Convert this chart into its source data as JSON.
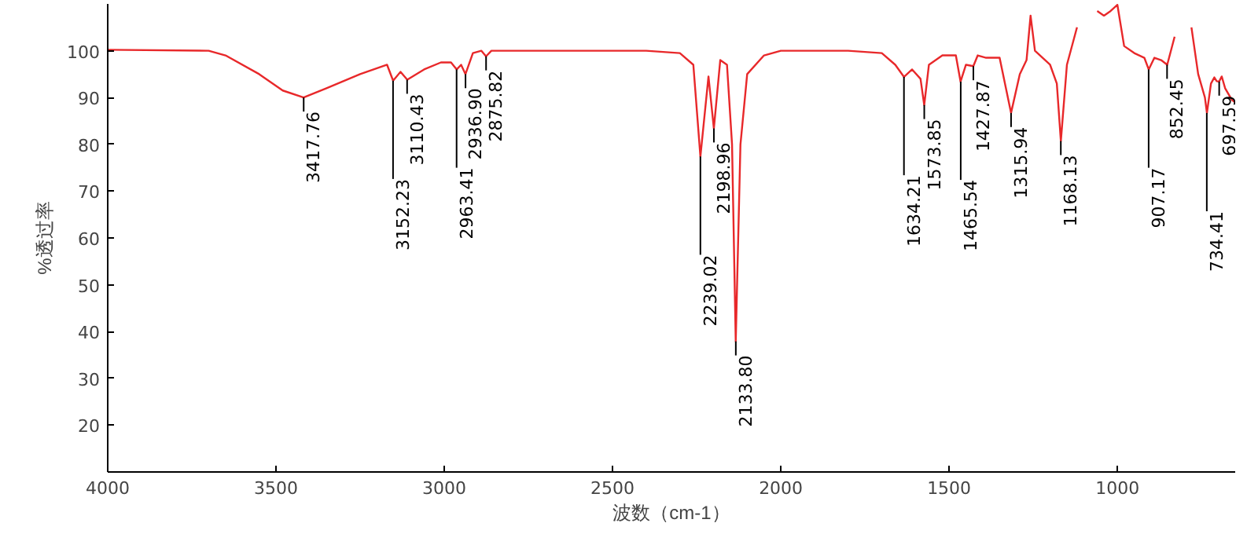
{
  "chart_data": {
    "type": "line",
    "xlabel": "波数（cm-1）",
    "ylabel": "%透过率",
    "xlim": [
      4000,
      650
    ],
    "ylim": [
      10,
      110
    ],
    "xticks": [
      4000,
      3500,
      3000,
      2500,
      2000,
      1500,
      1000
    ],
    "yticks": [
      20,
      30,
      40,
      50,
      60,
      70,
      80,
      90,
      100
    ],
    "grid": false,
    "line_style": "solid",
    "series": [
      {
        "color": "#e8282a",
        "x": [
          4000,
          3700,
          3650,
          3550,
          3480,
          3418,
          3350,
          3250,
          3170,
          3152,
          3130,
          3110,
          3060,
          3010,
          2980,
          2963,
          2950,
          2937,
          2915,
          2890,
          2876,
          2860,
          2600,
          2400,
          2300,
          2260,
          2239,
          2215,
          2199,
          2180,
          2160,
          2145,
          2134,
          2120,
          2100,
          2050,
          2000,
          1800,
          1700,
          1660,
          1634,
          1610,
          1585,
          1574,
          1560,
          1520,
          1480,
          1466,
          1450,
          1428,
          1415,
          1390,
          1350,
          1316,
          1290,
          1270,
          1258,
          1245,
          1200,
          1180,
          1168,
          1150,
          1120,
          1090,
          1060,
          1040,
          1020,
          1000,
          980,
          950,
          920,
          907,
          890,
          870,
          852,
          830,
          800,
          780,
          760,
          740,
          734,
          722,
          712,
          705,
          698,
          690,
          680,
          660,
          650
        ],
        "values": [
          100.2,
          100,
          99,
          95,
          91.5,
          90,
          92,
          95,
          97,
          93.6,
          95.5,
          93.8,
          96,
          97.5,
          97.5,
          96,
          97,
          95,
          99.5,
          100,
          98.8,
          100,
          100,
          100,
          99.5,
          97,
          77.4,
          94.5,
          83.4,
          98,
          97,
          80,
          37.9,
          80,
          95,
          99,
          100,
          100,
          99.5,
          97,
          94.4,
          96,
          94,
          88.4,
          97,
          99,
          99,
          93.4,
          97,
          96.7,
          99,
          98.5,
          98.5,
          86.7,
          95,
          98,
          107.5,
          100,
          97,
          93,
          80.7,
          97,
          105,
          null,
          108.5,
          107.5,
          108.5,
          109.8,
          101,
          99.5,
          98.5,
          96,
          98.5,
          98,
          97,
          103,
          null,
          105,
          95,
          90,
          86.7,
          93,
          94.3,
          93.5,
          93.4,
          94.5,
          92,
          89.5,
          89
        ]
      }
    ],
    "annotations": [
      {
        "text": "3417.76",
        "x": 3417.76,
        "y": 90
      },
      {
        "text": "3152.23",
        "x": 3152.23,
        "y": 93.6
      },
      {
        "text": "3110.43",
        "x": 3110.43,
        "y": 93.8
      },
      {
        "text": "2963.41",
        "x": 2963.41,
        "y": 96
      },
      {
        "text": "2936.90",
        "x": 2936.9,
        "y": 95
      },
      {
        "text": "2875.82",
        "x": 2875.82,
        "y": 98.8
      },
      {
        "text": "2239.02",
        "x": 2239.02,
        "y": 77.4
      },
      {
        "text": "2198.96",
        "x": 2198.96,
        "y": 83.4
      },
      {
        "text": "2133.80",
        "x": 2133.8,
        "y": 37.9
      },
      {
        "text": "1634.21",
        "x": 1634.21,
        "y": 94.4
      },
      {
        "text": "1573.85",
        "x": 1573.85,
        "y": 88.4
      },
      {
        "text": "1465.54",
        "x": 1465.54,
        "y": 93.4
      },
      {
        "text": "1427.87",
        "x": 1427.87,
        "y": 96.7
      },
      {
        "text": "1315.94",
        "x": 1315.94,
        "y": 86.7
      },
      {
        "text": "1168.13",
        "x": 1168.13,
        "y": 80.7
      },
      {
        "text": "907.17",
        "x": 907.17,
        "y": 96
      },
      {
        "text": "852.45",
        "x": 852.45,
        "y": 97
      },
      {
        "text": "734.41",
        "x": 734.41,
        "y": 86.7
      },
      {
        "text": "697.59",
        "x": 697.59,
        "y": 93.4
      }
    ]
  }
}
